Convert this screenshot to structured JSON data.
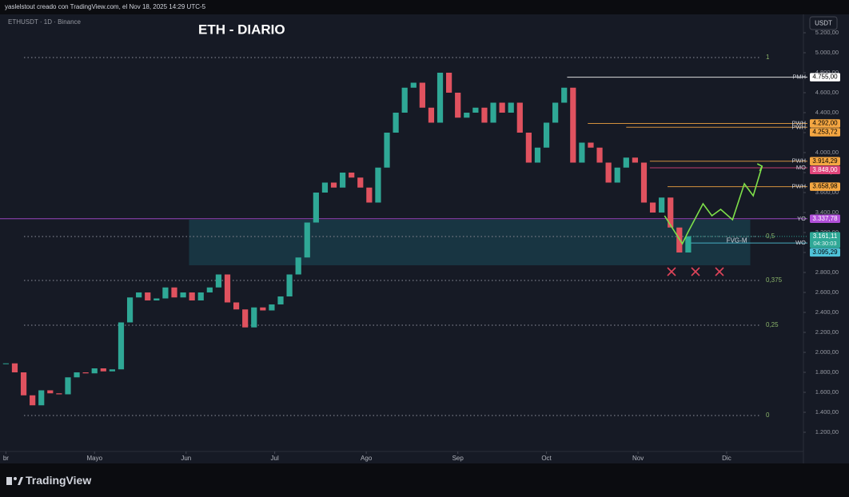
{
  "header": {
    "credit": "yaslelstout creado con TradingView.com, el Nov 18, 2025 14:29 UTC-5",
    "brand": "TradingView"
  },
  "chart_data": {
    "type": "candlestick",
    "title": "ETH - DIARIO",
    "symbol": "ETHUSDT · 1D · Binance",
    "currency": "USDT",
    "up_color": "#2fa896",
    "down_color": "#e0525f",
    "grid": false,
    "x": [
      0,
      3,
      6,
      9,
      12,
      15,
      18,
      21,
      24,
      27,
      30,
      33,
      36,
      39,
      42,
      45,
      48,
      51,
      54,
      57,
      60,
      63,
      66,
      69,
      72,
      75,
      78,
      81,
      84,
      87,
      90,
      93,
      96,
      99,
      102,
      105,
      108,
      111,
      114,
      117,
      120,
      123,
      126,
      129,
      132,
      135,
      138,
      141,
      144,
      147,
      150,
      153,
      156,
      159,
      162,
      165,
      168,
      171,
      174,
      177,
      180,
      183,
      186,
      189,
      192,
      195,
      198,
      201,
      204,
      207,
      210,
      213,
      216,
      219,
      222,
      225,
      228,
      231
    ],
    "values": [
      1890,
      1800,
      1570,
      1470,
      1620,
      1590,
      1580,
      1750,
      1800,
      1790,
      1840,
      1810,
      1830,
      2300,
      2550,
      2600,
      2520,
      2540,
      2650,
      2550,
      2600,
      2520,
      2600,
      2650,
      2780,
      2500,
      2430,
      2250,
      2450,
      2420,
      2480,
      2560,
      2780,
      2950,
      3300,
      3600,
      3700,
      3650,
      3800,
      3750,
      3650,
      3500,
      3850,
      4200,
      4400,
      4650,
      4700,
      4450,
      4300,
      4800,
      4600,
      4350,
      4400,
      4450,
      4300,
      4500,
      4400,
      4500,
      4200,
      3900,
      4050,
      4300,
      4500,
      4650,
      3900,
      4100,
      4050,
      3900,
      3700,
      3850,
      3950,
      3900,
      3500,
      3400,
      3550,
      3250,
      3000,
      3161.11
    ],
    "xlim": [
      -2,
      270
    ],
    "xticks": [
      {
        "value": 0,
        "label": "br"
      },
      {
        "value": 30,
        "label": "Mayo"
      },
      {
        "value": 61,
        "label": "Jun"
      },
      {
        "value": 91,
        "label": "Jul"
      },
      {
        "value": 122,
        "label": "Ago"
      },
      {
        "value": 153,
        "label": "Sep"
      },
      {
        "value": 183,
        "label": "Oct"
      },
      {
        "value": 214,
        "label": "Nov"
      },
      {
        "value": 244,
        "label": "Dic"
      }
    ],
    "ylim": [
      1008,
      5368
    ],
    "yticks": [
      {
        "value": 1200,
        "label": "1.200,00"
      },
      {
        "value": 1400,
        "label": "1.400,00"
      },
      {
        "value": 1600,
        "label": "1.600,00"
      },
      {
        "value": 1800,
        "label": "1.800,00"
      },
      {
        "value": 2000,
        "label": "2.000,00"
      },
      {
        "value": 2200,
        "label": "2.200,00"
      },
      {
        "value": 2400,
        "label": "2.400,00"
      },
      {
        "value": 2600,
        "label": "2.600,00"
      },
      {
        "value": 2800,
        "label": "2.800,00"
      },
      {
        "value": 3000,
        "label": "3.000,00"
      },
      {
        "value": 3200,
        "label": "3.200,00"
      },
      {
        "value": 3400,
        "label": "3.400,00"
      },
      {
        "value": 3600,
        "label": "3.600,00"
      },
      {
        "value": 3800,
        "label": "3.800,00"
      },
      {
        "value": 4000,
        "label": "4.000,00"
      },
      {
        "value": 4200,
        "label": "4.200,00"
      },
      {
        "value": 4400,
        "label": "4.400,00"
      },
      {
        "value": 4600,
        "label": "4.600,00"
      },
      {
        "value": 4800,
        "label": "4.800,00"
      },
      {
        "value": 5000,
        "label": "5.000,00"
      },
      {
        "value": 5200,
        "label": "5.200,00"
      }
    ],
    "levels": [
      {
        "name": "PMH",
        "start": 190,
        "value": 4755,
        "label": "4.755,00",
        "color": "#ffffff",
        "text_color": "#000000"
      },
      {
        "name": "PWH",
        "start": 197,
        "value": 4292,
        "label": "4.292,00",
        "color": "#f5a742",
        "text_color": "#000000"
      },
      {
        "name": "PWH",
        "start": 210,
        "value": 4253.72,
        "label": "4.253,72",
        "color": "#f5a742",
        "text_color": "#000000"
      },
      {
        "name": "PWH",
        "start": 218,
        "value": 3914.29,
        "label": "3.914,29",
        "color": "#f5a742",
        "text_color": "#000000"
      },
      {
        "name": "MO",
        "start": 218,
        "value": 3848,
        "label": "3.848,00",
        "color": "#e0457b",
        "text_color": "#ffffff"
      },
      {
        "name": "PWH",
        "start": 224,
        "value": 3658.98,
        "label": "3.658,98",
        "color": "#f5a742",
        "text_color": "#000000"
      },
      {
        "name": "YO",
        "start": -2,
        "value": 3337.78,
        "label": "3.337,78",
        "color": "#b04fd8",
        "text_color": "#ffffff"
      },
      {
        "name": "WO",
        "start": 231,
        "value": 3095.29,
        "label": "3.095,29",
        "color": "#4fc3d9",
        "text_color": "#000000"
      }
    ],
    "last_price": {
      "value": 3161.11,
      "label": "3.161,11",
      "countdown": "04:30:03",
      "color": "#2fa896"
    },
    "fib_levels": [
      {
        "label": "1",
        "price": 4952
      },
      {
        "label": "0,5",
        "price": 3160
      },
      {
        "label": "0,375",
        "price": 2720
      },
      {
        "label": "0,25",
        "price": 2272
      },
      {
        "label": "0",
        "price": 1368
      }
    ],
    "zone": {
      "label": "FVG-M",
      "start": 62,
      "end": 252,
      "low": 2872,
      "high": 3328,
      "color": "#1c6b78"
    },
    "projection": {
      "color": "#7ee04a",
      "x": [
        223,
        229,
        231,
        236,
        239,
        242,
        246,
        250,
        253,
        256
      ],
      "values": [
        3368,
        3088,
        3208,
        3488,
        3368,
        3432,
        3328,
        3688,
        3568,
        3864
      ]
    }
  }
}
